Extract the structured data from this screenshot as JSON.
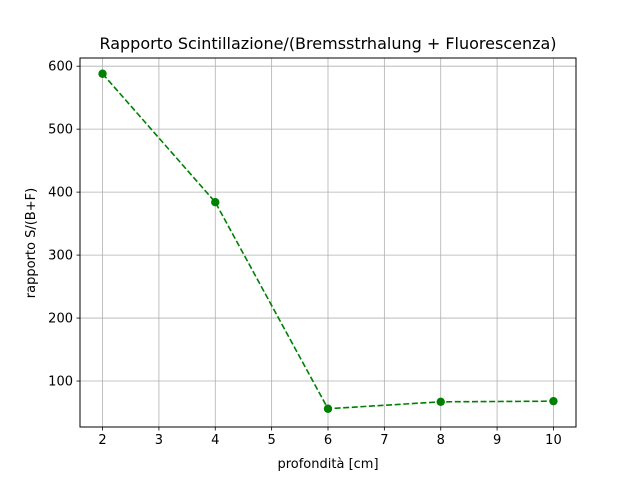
{
  "chart_data": {
    "type": "line",
    "title": "Rapporto Scintillazione/(Bremsstrhalung + Fluorescenza)",
    "xlabel": "profondità [cm]",
    "ylabel": "rapporto S/(B+F)",
    "x": [
      2,
      4,
      6,
      8,
      10
    ],
    "series": [
      {
        "values": [
          588,
          384,
          56,
          67,
          68
        ]
      }
    ],
    "xlim": [
      1.6,
      10.4
    ],
    "ylim": [
      27,
      613
    ],
    "xticks": [
      "2",
      "3",
      "4",
      "5",
      "6",
      "7",
      "8",
      "9",
      "10"
    ],
    "yticks": [
      "100",
      "200",
      "300",
      "400",
      "500",
      "600"
    ],
    "grid": true,
    "line_style": "dashed",
    "marker": "circle",
    "colors": {
      "series": "#008000",
      "grid": "#b0b0b0",
      "axes": "#000000"
    }
  }
}
